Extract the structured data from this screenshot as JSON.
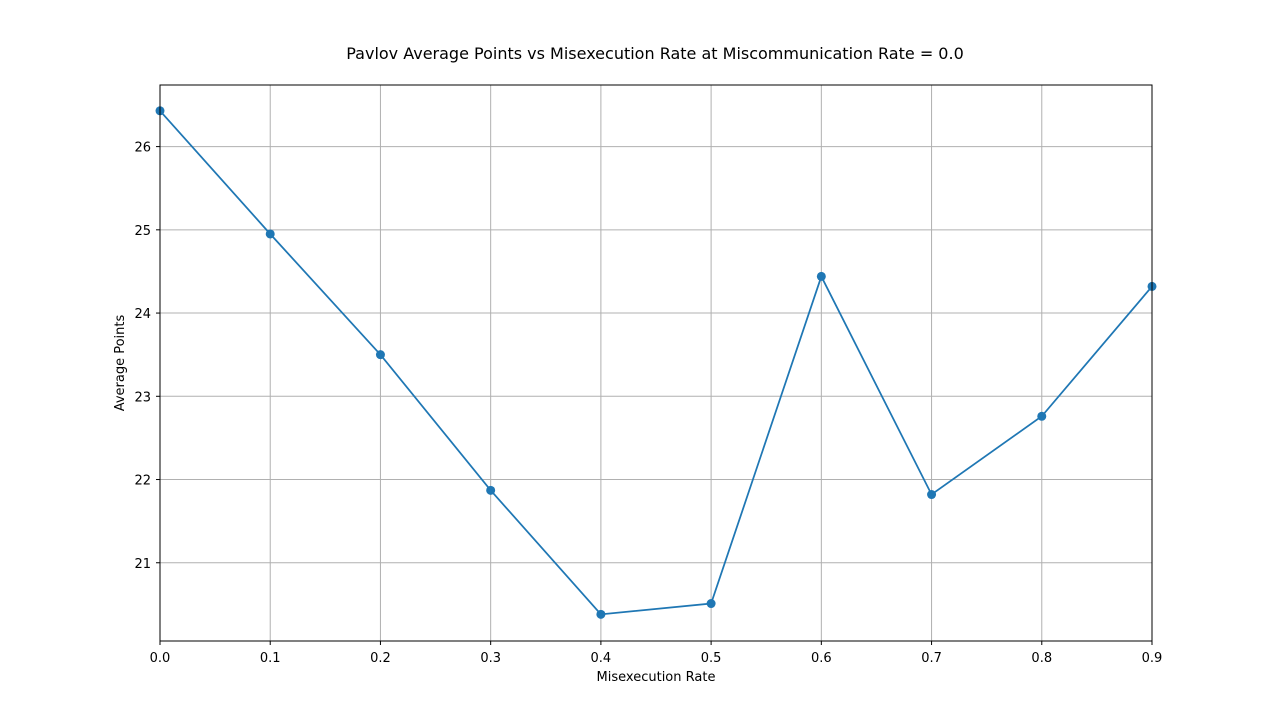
{
  "chart_data": {
    "type": "line",
    "title": "Pavlov Average Points vs Misexecution Rate at Miscommunication Rate = 0.0",
    "xlabel": "Misexecution Rate",
    "ylabel": "Average Points",
    "xlim": [
      0.0,
      0.9
    ],
    "ylim": [
      20.06,
      26.74
    ],
    "grid": true,
    "x_ticks": [
      "0.0",
      "0.1",
      "0.2",
      "0.3",
      "0.4",
      "0.5",
      "0.6",
      "0.7",
      "0.8",
      "0.9"
    ],
    "y_ticks": [
      "21",
      "22",
      "23",
      "24",
      "25",
      "26"
    ],
    "series": [
      {
        "color": "#1f77b4",
        "marker": "circle",
        "x": [
          0.0,
          0.1,
          0.2,
          0.3,
          0.4,
          0.5,
          0.6,
          0.7,
          0.8,
          0.9
        ],
        "y": [
          26.43,
          24.95,
          23.5,
          21.87,
          20.38,
          20.51,
          24.44,
          21.82,
          22.76,
          24.32
        ]
      }
    ]
  }
}
